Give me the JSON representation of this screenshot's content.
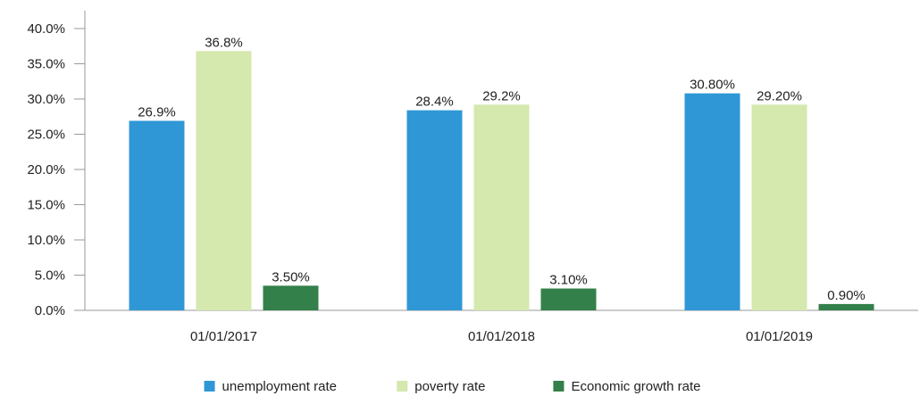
{
  "chart_data": {
    "type": "bar",
    "title": "",
    "xlabel": "",
    "ylabel": "",
    "ylim": [
      0,
      40
    ],
    "yticks": [
      "0.0%",
      "5.0%",
      "10.0%",
      "15.0%",
      "20.0%",
      "25.0%",
      "30.0%",
      "35.0%",
      "40.0%"
    ],
    "categories": [
      "01/01/2017",
      "01/01/2018",
      "01/01/2019"
    ],
    "series": [
      {
        "name": "unemployment rate",
        "color": "#2f97d6",
        "values": [
          26.9,
          28.4,
          30.8
        ],
        "labels": [
          "26.9%",
          "28.4%",
          "30.80%"
        ]
      },
      {
        "name": "poverty rate",
        "color": "#d5e8ae",
        "values": [
          36.8,
          29.2,
          29.2
        ],
        "labels": [
          "36.8%",
          "29.2%",
          "29.20%"
        ]
      },
      {
        "name": "Economic growth rate",
        "color": "#33804a",
        "values": [
          3.5,
          3.1,
          0.9
        ],
        "labels": [
          "3.50%",
          "3.10%",
          "0.90%"
        ]
      }
    ],
    "grid": false,
    "legend_position": "bottom"
  }
}
